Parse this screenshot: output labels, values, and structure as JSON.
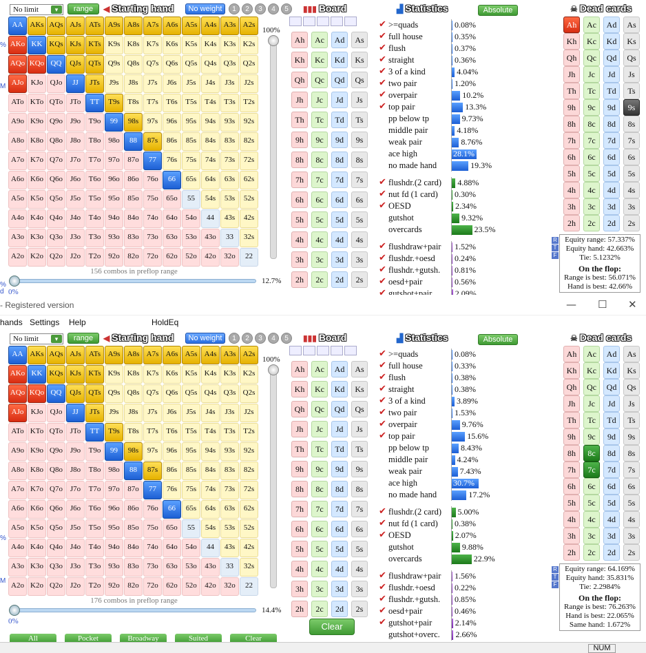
{
  "window": {
    "title": "- Registered version"
  },
  "menu": [
    "hands",
    "Settings",
    "Help",
    "HoldEq"
  ],
  "ranks": [
    "A",
    "K",
    "Q",
    "J",
    "T",
    "9",
    "8",
    "7",
    "6",
    "5",
    "4",
    "3",
    "2"
  ],
  "panels": [
    {
      "id": "p1",
      "limit": "No limit",
      "range_btn": "range",
      "starting_hand": "Starting hand",
      "no_weight": "No weight",
      "weights": [
        "1",
        "2",
        "3",
        "4",
        "5"
      ],
      "board_title": "Board",
      "stats_title": "Statistics",
      "absolute_btn": "Absolute",
      "dead_title": "Dead cards",
      "pct_top": "100%",
      "combos": "156 combos in preflop range",
      "slider_pct": "12.7%",
      "slider_left": "0%",
      "range_fraction": 0.127,
      "selected": [
        "AA",
        "AKs",
        "AQs",
        "AJs",
        "ATs",
        "A9s",
        "A8s",
        "A7s",
        "A6s",
        "A5s",
        "A4s",
        "A3s",
        "A2s",
        "AKo",
        "KK",
        "KQs",
        "KJs",
        "KTs",
        "AQo",
        "KQo",
        "QQ",
        "QJs",
        "QTs",
        "AJo",
        "JJ",
        "JTs",
        "TT",
        "T9s",
        "99",
        "98s",
        "88",
        "87s",
        "77",
        "66"
      ],
      "dead_selected": [
        "Ah",
        "9s"
      ],
      "stats_groups": [
        [
          {
            "c": "✔",
            "l": ">=quads",
            "v": "0.08%",
            "w": 0.3,
            "k": "b"
          },
          {
            "c": "✔",
            "l": "full house",
            "v": "0.35%",
            "w": 0.3,
            "k": "b"
          },
          {
            "c": "✔",
            "l": "flush",
            "v": "0.37%",
            "w": 0.3,
            "k": "b"
          },
          {
            "c": "✔",
            "l": "straight",
            "v": "0.36%",
            "w": 0.3,
            "k": "b"
          },
          {
            "c": "✔",
            "l": "3 of a kind",
            "v": "4.04%",
            "w": 4.04,
            "k": "b"
          },
          {
            "c": "✔",
            "l": "two pair",
            "v": "1.20%",
            "w": 1.2,
            "k": "b"
          },
          {
            "c": "✔",
            "l": "overpair",
            "v": "10.2%",
            "w": 10.2,
            "k": "b"
          },
          {
            "c": "✔",
            "l": "top pair",
            "v": "13.3%",
            "w": 13.3,
            "k": "b"
          },
          {
            "c": "",
            "l": "pp below tp",
            "v": "9.73%",
            "w": 9.73,
            "k": "b"
          },
          {
            "c": "",
            "l": "middle pair",
            "v": "4.18%",
            "w": 4.18,
            "k": "b"
          },
          {
            "c": "",
            "l": "weak pair",
            "v": "8.76%",
            "w": 8.76,
            "k": "b"
          },
          {
            "c": "",
            "l": "ace high",
            "v": "28.1%",
            "w": 28.1,
            "k": "b"
          },
          {
            "c": "",
            "l": "no made hand",
            "v": "19.3%",
            "w": 19.3,
            "k": "b"
          }
        ],
        [
          {
            "c": "✔",
            "l": "flushdr.(2 card)",
            "v": "4.88%",
            "w": 4.88,
            "k": "g"
          },
          {
            "c": "✔",
            "l": "nut fd (1 card)",
            "v": "0.30%",
            "w": 0.3,
            "k": "g"
          },
          {
            "c": "✔",
            "l": "OESD",
            "v": "2.34%",
            "w": 2.34,
            "k": "g"
          },
          {
            "c": "",
            "l": "gutshot",
            "v": "9.32%",
            "w": 9.32,
            "k": "g"
          },
          {
            "c": "",
            "l": "overcards",
            "v": "23.5%",
            "w": 23.5,
            "k": "g"
          }
        ],
        [
          {
            "c": "✔",
            "l": "flushdraw+pair",
            "v": "1.52%",
            "w": 1.52,
            "k": "v"
          },
          {
            "c": "✔",
            "l": "flushdr.+oesd",
            "v": "0.24%",
            "w": 0.24,
            "k": "v"
          },
          {
            "c": "✔",
            "l": "flushdr.+gutsh.",
            "v": "0.81%",
            "w": 0.81,
            "k": "v"
          },
          {
            "c": "✔",
            "l": "oesd+pair",
            "v": "0.56%",
            "w": 0.56,
            "k": "v"
          },
          {
            "c": "✔",
            "l": "gutshot+pair",
            "v": "2.09%",
            "w": 2.09,
            "k": "v"
          }
        ]
      ],
      "equity": {
        "range": "Equity range: 57.337%",
        "hand": "Equity hand: 42.663%",
        "tie": "Tie: 5.1232%",
        "flop": "On the flop:",
        "range_best": "Range is best: 56.071%",
        "hand_best": "Hand is best: 42.66%",
        "same": ""
      }
    },
    {
      "id": "p2",
      "limit": "No limit",
      "range_btn": "range",
      "starting_hand": "Starting hand",
      "no_weight": "No weight",
      "weights": [
        "1",
        "2",
        "3",
        "4",
        "5"
      ],
      "board_title": "Board",
      "stats_title": "Statistics",
      "absolute_btn": "Absolute",
      "dead_title": "Dead cards",
      "pct_top": "100%",
      "combos": "176 combos in preflop range",
      "slider_pct": "14.4%",
      "slider_left": "0%",
      "range_fraction": 0.144,
      "selected": [
        "AA",
        "AKs",
        "AQs",
        "AJs",
        "ATs",
        "A9s",
        "A8s",
        "A7s",
        "A6s",
        "A5s",
        "A4s",
        "A3s",
        "A2s",
        "AKo",
        "KK",
        "KQs",
        "KJs",
        "KTs",
        "AQo",
        "KQo",
        "QQ",
        "QJs",
        "QTs",
        "AJo",
        "JJ",
        "JTs",
        "TT",
        "T9s",
        "99",
        "98s",
        "88",
        "87s",
        "77",
        "66"
      ],
      "dead_selected": [
        "8c",
        "7c"
      ],
      "stats_groups": [
        [
          {
            "c": "✔",
            "l": ">=quads",
            "v": "0.08%",
            "w": 0.3,
            "k": "b"
          },
          {
            "c": "✔",
            "l": "full house",
            "v": "0.33%",
            "w": 0.3,
            "k": "b"
          },
          {
            "c": "✔",
            "l": "flush",
            "v": "0.38%",
            "w": 0.3,
            "k": "b"
          },
          {
            "c": "✔",
            "l": "straight",
            "v": "0.38%",
            "w": 0.3,
            "k": "b"
          },
          {
            "c": "✔",
            "l": "3 of a kind",
            "v": "3.89%",
            "w": 3.89,
            "k": "b"
          },
          {
            "c": "✔",
            "l": "two pair",
            "v": "1.53%",
            "w": 1.53,
            "k": "b"
          },
          {
            "c": "✔",
            "l": "overpair",
            "v": "9.76%",
            "w": 9.76,
            "k": "b"
          },
          {
            "c": "✔",
            "l": "top pair",
            "v": "15.6%",
            "w": 15.6,
            "k": "b"
          },
          {
            "c": "",
            "l": "pp below tp",
            "v": "8.43%",
            "w": 8.43,
            "k": "b"
          },
          {
            "c": "",
            "l": "middle pair",
            "v": "4.24%",
            "w": 4.24,
            "k": "b"
          },
          {
            "c": "",
            "l": "weak pair",
            "v": "7.43%",
            "w": 7.43,
            "k": "b"
          },
          {
            "c": "",
            "l": "ace high",
            "v": "30.7%",
            "w": 30.7,
            "k": "b"
          },
          {
            "c": "",
            "l": "no made hand",
            "v": "17.2%",
            "w": 17.2,
            "k": "b"
          }
        ],
        [
          {
            "c": "✔",
            "l": "flushdr.(2 card)",
            "v": "5.00%",
            "w": 5.0,
            "k": "g"
          },
          {
            "c": "✔",
            "l": "nut fd (1 card)",
            "v": "0.38%",
            "w": 0.38,
            "k": "g"
          },
          {
            "c": "✔",
            "l": "OESD",
            "v": "2.07%",
            "w": 2.07,
            "k": "g"
          },
          {
            "c": "",
            "l": "gutshot",
            "v": "9.88%",
            "w": 9.88,
            "k": "g"
          },
          {
            "c": "",
            "l": "overcards",
            "v": "22.9%",
            "w": 22.9,
            "k": "g"
          }
        ],
        [
          {
            "c": "✔",
            "l": "flushdraw+pair",
            "v": "1.56%",
            "w": 1.56,
            "k": "v"
          },
          {
            "c": "✔",
            "l": "flushdr.+oesd",
            "v": "0.22%",
            "w": 0.22,
            "k": "v"
          },
          {
            "c": "✔",
            "l": "flushdr.+gutsh.",
            "v": "0.85%",
            "w": 0.85,
            "k": "v"
          },
          {
            "c": "✔",
            "l": "oesd+pair",
            "v": "0.46%",
            "w": 0.46,
            "k": "v"
          },
          {
            "c": "✔",
            "l": "gutshot+pair",
            "v": "2.14%",
            "w": 2.14,
            "k": "v"
          },
          {
            "c": "",
            "l": "gutshot+overc.",
            "v": "2.66%",
            "w": 2.66,
            "k": "v"
          }
        ]
      ],
      "equity": {
        "range": "Equity range: 64.169%",
        "hand": "Equity hand: 35.831%",
        "tie": "Tie: 2.2984%",
        "flop": "On the flop:",
        "range_best": "Range is best: 76.263%",
        "hand_best": "Hand is best: 22.065%",
        "same": "Same hand: 1.672%"
      }
    }
  ],
  "card_ranks": [
    "A",
    "K",
    "Q",
    "J",
    "T",
    "9",
    "8",
    "7",
    "6",
    "5",
    "4",
    "3",
    "2"
  ],
  "suits": [
    "h",
    "c",
    "d",
    "s"
  ],
  "clear_btn": "Clear",
  "bottom_buttons": [
    "All",
    "Pocket",
    "Broadway",
    "Suited",
    "Clear"
  ],
  "rtf": [
    "R",
    "T",
    "F"
  ],
  "left_edge": [
    "%",
    "M",
    "%",
    "d"
  ],
  "status_num": "NUM"
}
